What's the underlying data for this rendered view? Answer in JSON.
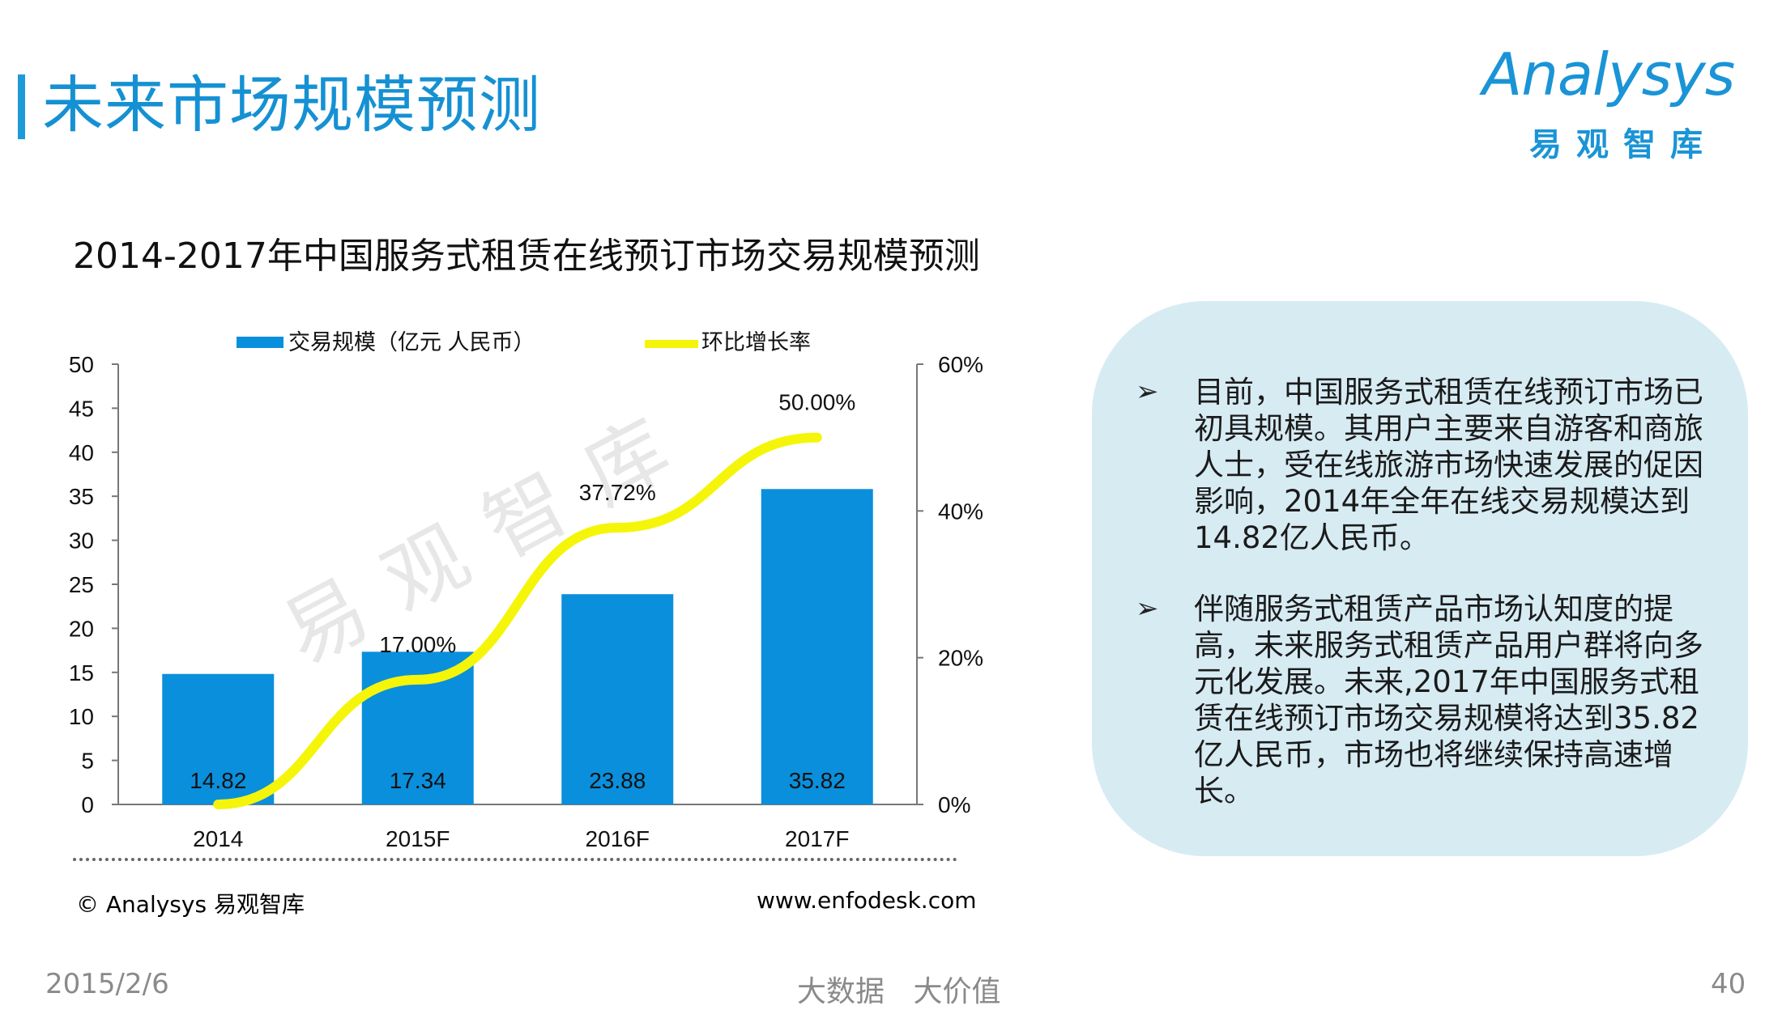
{
  "page": {
    "title": "未来市场规模预测",
    "logo_text": "Analysys",
    "logo_sub": "易观智库",
    "watermark": "易观智库",
    "copyright": "© Analysys 易观智库",
    "website": "www.enfodesk.com",
    "footer_date": "2015/2/6",
    "footer_slogan": "大数据 大价值",
    "page_number": "40"
  },
  "notes": [
    "目前，中国服务式租赁在线预订市场已初具规模。其用户主要来自游客和商旅人士，受在线旅游市场快速发展的促因影响，2014年全年在线交易规模达到14.82亿人民币。",
    "伴随服务式租赁产品市场认知度的提高，未来服务式租赁产品用户群将向多元化发展。未来,2017年中国服务式租赁在线预订市场交易规模将达到35.82亿人民币，市场也将继续保持高速增长。"
  ],
  "note_marker": "➢",
  "colors": {
    "accent": "#1591d3",
    "bar": "#0a8fdc",
    "line": "#f5f50a",
    "box": "#d7ebf3"
  },
  "chart_data": {
    "type": "bar",
    "title": "2014-2017年中国服务式租赁在线预订市场交易规模预测",
    "categories": [
      "2014",
      "2015F",
      "2016F",
      "2017F"
    ],
    "series": [
      {
        "name": "交易规模（亿元 人民币）",
        "type": "bar",
        "axis": "left",
        "values": [
          14.82,
          17.34,
          23.88,
          35.82
        ],
        "labels": [
          "14.82",
          "17.34",
          "23.88",
          "35.82"
        ]
      },
      {
        "name": "环比增长率",
        "type": "line",
        "axis": "right",
        "values": [
          0,
          17.0,
          37.72,
          50.0
        ],
        "labels": [
          "",
          "17.00%",
          "37.72%",
          "50.00%"
        ]
      }
    ],
    "y_left": {
      "min": 0,
      "max": 50,
      "ticks": [
        "0",
        "5",
        "10",
        "15",
        "20",
        "25",
        "30",
        "35",
        "40",
        "45",
        "50"
      ]
    },
    "y_right": {
      "min": 0,
      "max": 60,
      "ticks": [
        "0%",
        "20%",
        "40%",
        "60%"
      ]
    },
    "legend_position": "top",
    "grid": false
  }
}
